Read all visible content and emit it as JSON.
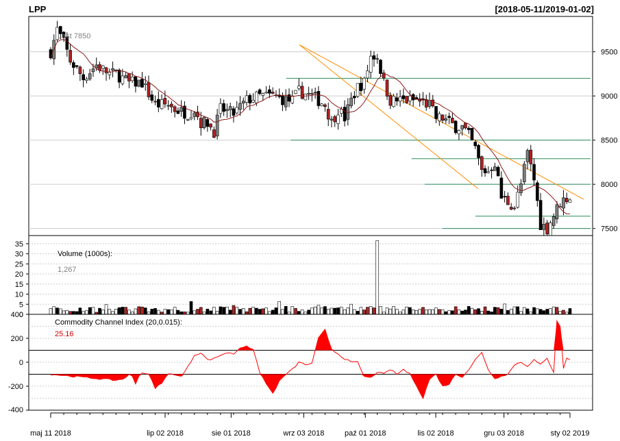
{
  "header": {
    "symbol": "LPP",
    "range": "[2018-05-11/2019-01-02]"
  },
  "chart_data": [
    {
      "type": "candlestick",
      "panel": "price",
      "annotation": "Last 7850",
      "ylim": [
        7420,
        9900
      ],
      "yticks": [
        7500,
        8000,
        8500,
        9000,
        9500
      ],
      "grid": true,
      "bar_count": 160,
      "close_anchors": [
        [
          0,
          9500
        ],
        [
          2,
          9750
        ],
        [
          4,
          9600
        ],
        [
          6,
          9400
        ],
        [
          10,
          9200
        ],
        [
          14,
          9350
        ],
        [
          18,
          9250
        ],
        [
          20,
          9250
        ],
        [
          24,
          9150
        ],
        [
          28,
          9150
        ],
        [
          32,
          8900
        ],
        [
          36,
          8900
        ],
        [
          38,
          8850
        ],
        [
          42,
          8800
        ],
        [
          44,
          8850
        ],
        [
          46,
          8700
        ],
        [
          48,
          8700
        ],
        [
          50,
          8600
        ],
        [
          52,
          8850
        ],
        [
          56,
          8800
        ],
        [
          60,
          8950
        ],
        [
          64,
          9000
        ],
        [
          68,
          9000
        ],
        [
          72,
          8950
        ],
        [
          74,
          8950
        ],
        [
          76,
          9050
        ],
        [
          80,
          9000
        ],
        [
          84,
          8900
        ],
        [
          86,
          8700
        ],
        [
          88,
          8850
        ],
        [
          90,
          8750
        ],
        [
          92,
          8950
        ],
        [
          94,
          9100
        ],
        [
          96,
          9150
        ],
        [
          98,
          9450
        ],
        [
          100,
          9450
        ],
        [
          102,
          9150
        ],
        [
          104,
          8950
        ],
        [
          108,
          8950
        ],
        [
          112,
          8950
        ],
        [
          116,
          8900
        ],
        [
          118,
          8750
        ],
        [
          120,
          8750
        ],
        [
          124,
          8650
        ],
        [
          126,
          8650
        ],
        [
          128,
          8550
        ],
        [
          130,
          8400
        ],
        [
          132,
          8150
        ],
        [
          134,
          8150
        ],
        [
          136,
          8250
        ],
        [
          138,
          7850
        ],
        [
          140,
          7800
        ],
        [
          142,
          7750
        ],
        [
          144,
          8000
        ],
        [
          146,
          8350
        ],
        [
          148,
          8050
        ],
        [
          150,
          7550
        ],
        [
          152,
          7500
        ],
        [
          154,
          7650
        ],
        [
          156,
          7800
        ],
        [
          158,
          7850
        ]
      ],
      "moving_average_color": "#8b1a1a",
      "up_color": "#ffffff",
      "down_color": "#b22222",
      "trend_lines_color": "#ff8c00",
      "support_lines_color": "#2e8b57",
      "trend_lines": [
        {
          "from": [
            "2018-09-01",
            9580
          ],
          "to": [
            "2019-01-02",
            7830
          ]
        },
        {
          "from": [
            "2018-09-01",
            9580
          ],
          "to": [
            "2018-11-15",
            7950
          ]
        }
      ],
      "support_lines": [
        {
          "y": 9200,
          "from": "2018-08-26",
          "to": "2019-01-02"
        },
        {
          "y": 8500,
          "from": "2018-08-28",
          "to": "2019-01-02"
        },
        {
          "y": 8290,
          "from": "2018-10-22",
          "to": "2019-01-02"
        },
        {
          "y": 8000,
          "from": "2018-10-28",
          "to": "2019-01-02"
        },
        {
          "y": 7640,
          "from": "2018-11-20",
          "to": "2019-01-02"
        },
        {
          "y": 7500,
          "from": "2018-11-05",
          "to": "2019-01-02"
        }
      ]
    },
    {
      "type": "bar",
      "panel": "volume",
      "label": "Volume (1000s):",
      "last_value": "1,267",
      "ylim": [
        0,
        37
      ],
      "yticks": [
        0,
        5,
        10,
        15,
        20,
        25,
        30,
        35
      ],
      "spike": {
        "bar": 100,
        "value": 36.5
      },
      "typical_range": [
        1,
        4
      ]
    },
    {
      "type": "area",
      "panel": "cci",
      "label": "Commodity Channel Index (20,0.015):",
      "last_value": "25.16",
      "ylim": [
        -400,
        400
      ],
      "yticks": [
        -400,
        -200,
        0,
        200,
        400
      ],
      "reference_lines": [
        100,
        -100
      ],
      "fill_color": "#ff0000",
      "anchors": [
        [
          0,
          -100
        ],
        [
          4,
          -110
        ],
        [
          10,
          -125
        ],
        [
          16,
          -140
        ],
        [
          20,
          -150
        ],
        [
          22,
          -140
        ],
        [
          24,
          -105
        ],
        [
          25,
          -120
        ],
        [
          26,
          -180
        ],
        [
          27,
          -110
        ],
        [
          28,
          -90
        ],
        [
          30,
          -95
        ],
        [
          32,
          -220
        ],
        [
          34,
          -170
        ],
        [
          36,
          -100
        ],
        [
          38,
          -100
        ],
        [
          40,
          -120
        ],
        [
          42,
          -40
        ],
        [
          44,
          60
        ],
        [
          46,
          80
        ],
        [
          48,
          20
        ],
        [
          50,
          30
        ],
        [
          52,
          60
        ],
        [
          54,
          80
        ],
        [
          56,
          70
        ],
        [
          58,
          120
        ],
        [
          60,
          140
        ],
        [
          62,
          100
        ],
        [
          64,
          -80
        ],
        [
          66,
          -180
        ],
        [
          68,
          -260
        ],
        [
          70,
          -160
        ],
        [
          72,
          -100
        ],
        [
          74,
          -60
        ],
        [
          76,
          0
        ],
        [
          78,
          -20
        ],
        [
          80,
          -10
        ],
        [
          82,
          200
        ],
        [
          84,
          270
        ],
        [
          86,
          110
        ],
        [
          88,
          70
        ],
        [
          90,
          30
        ],
        [
          92,
          0
        ],
        [
          94,
          0
        ],
        [
          96,
          -120
        ],
        [
          98,
          -130
        ],
        [
          100,
          -80
        ],
        [
          102,
          -100
        ],
        [
          104,
          -60
        ],
        [
          106,
          -100
        ],
        [
          108,
          -60
        ],
        [
          110,
          -100
        ],
        [
          112,
          -190
        ],
        [
          114,
          -300
        ],
        [
          116,
          -140
        ],
        [
          118,
          -100
        ],
        [
          120,
          -200
        ],
        [
          122,
          -180
        ],
        [
          124,
          -100
        ],
        [
          126,
          -120
        ],
        [
          128,
          -60
        ],
        [
          130,
          20
        ],
        [
          132,
          80
        ],
        [
          134,
          -60
        ],
        [
          136,
          -140
        ],
        [
          138,
          -110
        ],
        [
          140,
          -100
        ],
        [
          142,
          -20
        ],
        [
          144,
          0
        ],
        [
          146,
          -30
        ],
        [
          148,
          20
        ],
        [
          150,
          -20
        ],
        [
          152,
          30
        ],
        [
          154,
          -80
        ],
        [
          155,
          350
        ],
        [
          156,
          300
        ],
        [
          157,
          -50
        ],
        [
          158,
          30
        ],
        [
          159,
          25
        ]
      ]
    }
  ],
  "x_axis": {
    "labels": [
      "maj 11 2018",
      "lip 02 2018",
      "sie 01 2018",
      "wrz 03 2018",
      "paź 01 2018",
      "lis 02 2018",
      "gru 03 2018",
      "sty 02 2019"
    ],
    "label_dates": [
      "2018-05-11",
      "2018-07-02",
      "2018-08-01",
      "2018-09-03",
      "2018-10-01",
      "2018-11-02",
      "2018-12-03",
      "2019-01-02"
    ],
    "range": [
      "2018-05-11",
      "2019-01-02"
    ]
  },
  "colors": {
    "grid": "#cccccc",
    "frame": "#000000",
    "axis_text": "#000000",
    "annotation_text": "#808080",
    "cci_value": "#d00000"
  }
}
